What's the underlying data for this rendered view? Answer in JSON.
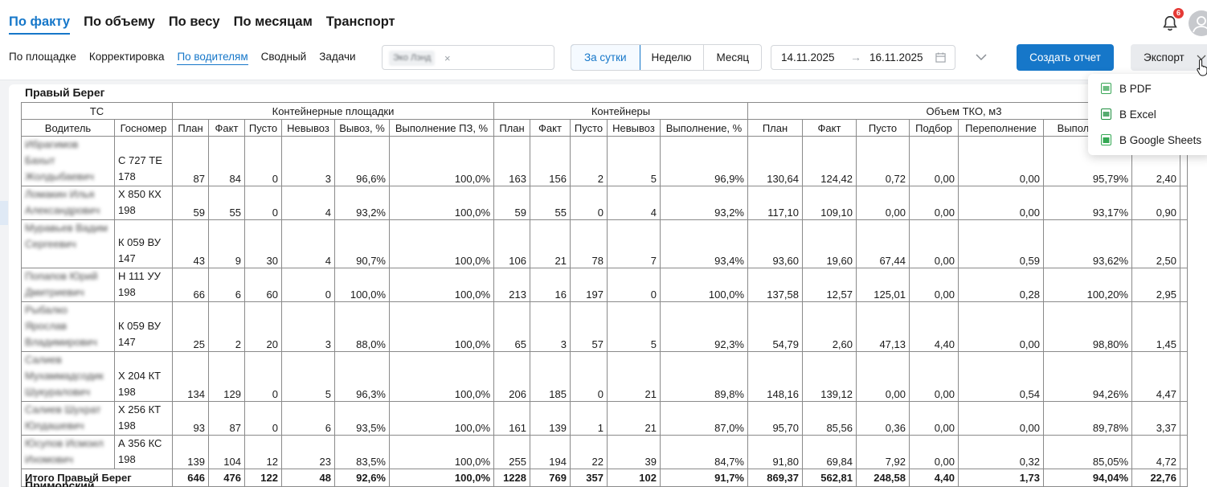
{
  "nav": {
    "main_tabs": [
      "По факту",
      "По объему",
      "По весу",
      "По месяцам",
      "Транспорт"
    ],
    "sub_tabs": [
      "По площадке",
      "Корректировка",
      "По водителям",
      "Сводный",
      "Задачи"
    ],
    "notifications_count": "6"
  },
  "filters": {
    "chip_label": "Эко Лэнд",
    "chip_close": "×",
    "period_options": [
      "За сутки",
      "Неделю",
      "Месяц"
    ],
    "date_from": "14.11.2025",
    "date_arrow": "→",
    "date_to": "16.11.2025"
  },
  "actions": {
    "create_report": "Создать отчет",
    "export": "Экспорт",
    "export_menu": [
      "В PDF",
      "В Excel",
      "В Google Sheets"
    ]
  },
  "colors": {
    "accent": "#1677c9",
    "pdf_icon": "#3aa757",
    "excel_icon": "#1e8e3e",
    "sheets_icon": "#34a853",
    "badge": "#e53935"
  },
  "section": {
    "title": "Правый Берег",
    "next_title": "Приморский"
  },
  "table": {
    "groups": [
      "ТС",
      "Контейнерные площадки",
      "Контейнеры",
      "Объем ТКО, м3"
    ],
    "columns": [
      "Водитель",
      "Госномер",
      "План",
      "Факт",
      "Пусто",
      "Невывоз",
      "Вывоз, %",
      "Выполнение ПЗ, %",
      "План",
      "Факт",
      "Пусто",
      "Невывоз",
      "Выполнение, %",
      "План",
      "Факт",
      "Пусто",
      "Подбор",
      "Переполнение",
      "Выполнение",
      ""
    ],
    "rows": [
      {
        "driver": "Ибрагимов Бахыт Жолдыбаевич",
        "plate": [
          "С 727 ТЕ",
          "178"
        ],
        "values": [
          "87",
          "84",
          "0",
          "3",
          "96,6%",
          "100,0%",
          "163",
          "156",
          "2",
          "5",
          "96,9%",
          "130,64",
          "124,42",
          "0,72",
          "0,00",
          "0,00",
          "95,79%",
          "2,40"
        ]
      },
      {
        "driver": "Ломакин Илья Александрович",
        "plate": [
          "Х 850 КХ",
          "198"
        ],
        "values": [
          "59",
          "55",
          "0",
          "4",
          "93,2%",
          "100,0%",
          "59",
          "55",
          "0",
          "4",
          "93,2%",
          "117,10",
          "109,10",
          "0,00",
          "0,00",
          "0,00",
          "93,17%",
          "0,90"
        ]
      },
      {
        "driver": "Муравьев Вадим Сергеевич",
        "plate": [
          "К 059 ВУ",
          "147"
        ],
        "values": [
          "43",
          "9",
          "30",
          "4",
          "90,7%",
          "100,0%",
          "106",
          "21",
          "78",
          "7",
          "93,4%",
          "93,60",
          "19,60",
          "67,44",
          "0,00",
          "0,59",
          "93,62%",
          "2,50"
        ]
      },
      {
        "driver": "Попапов Юрий Дмитриевич",
        "plate": [
          "Н 111 УУ",
          "198"
        ],
        "values": [
          "66",
          "6",
          "60",
          "0",
          "100,0%",
          "100,0%",
          "213",
          "16",
          "197",
          "0",
          "100,0%",
          "137,58",
          "12,57",
          "125,01",
          "0,00",
          "0,28",
          "100,20%",
          "2,95"
        ]
      },
      {
        "driver": "Рыбалко Ярослав Владимирович",
        "plate": [
          "К 059 ВУ",
          "147"
        ],
        "values": [
          "25",
          "2",
          "20",
          "3",
          "88,0%",
          "100,0%",
          "65",
          "3",
          "57",
          "5",
          "92,3%",
          "54,79",
          "2,60",
          "47,13",
          "4,40",
          "0,00",
          "98,80%",
          "1,45"
        ]
      },
      {
        "driver": "Салиев Мухаммадсодик Шукуралович",
        "plate": [
          "Х 204 КТ",
          "198"
        ],
        "values": [
          "134",
          "129",
          "0",
          "5",
          "96,3%",
          "100,0%",
          "206",
          "185",
          "0",
          "21",
          "89,8%",
          "148,16",
          "139,12",
          "0,00",
          "0,00",
          "0,54",
          "94,26%",
          "4,47"
        ]
      },
      {
        "driver": "Салиев Шухрат Юлдашевич",
        "plate": [
          "Х 256 КТ",
          "198"
        ],
        "values": [
          "93",
          "87",
          "0",
          "6",
          "93,5%",
          "100,0%",
          "161",
          "139",
          "1",
          "21",
          "87,0%",
          "95,70",
          "85,56",
          "0,36",
          "0,00",
          "0,00",
          "89,78%",
          "3,37"
        ]
      },
      {
        "driver": "Юсупов Исмоил Ихомович",
        "plate": [
          "А 356 КС",
          "198"
        ],
        "values": [
          "139",
          "104",
          "12",
          "23",
          "83,5%",
          "100,0%",
          "255",
          "194",
          "22",
          "39",
          "84,7%",
          "91,80",
          "69,84",
          "7,92",
          "0,00",
          "0,32",
          "85,05%",
          "4,72"
        ]
      }
    ],
    "total": {
      "label": "Итого Правый Берег",
      "values": [
        "646",
        "476",
        "122",
        "48",
        "92,6%",
        "100,0%",
        "1228",
        "769",
        "357",
        "102",
        "91,7%",
        "869,37",
        "562,81",
        "248,58",
        "4,40",
        "1,73",
        "94,04%",
        "22,76"
      ]
    }
  }
}
